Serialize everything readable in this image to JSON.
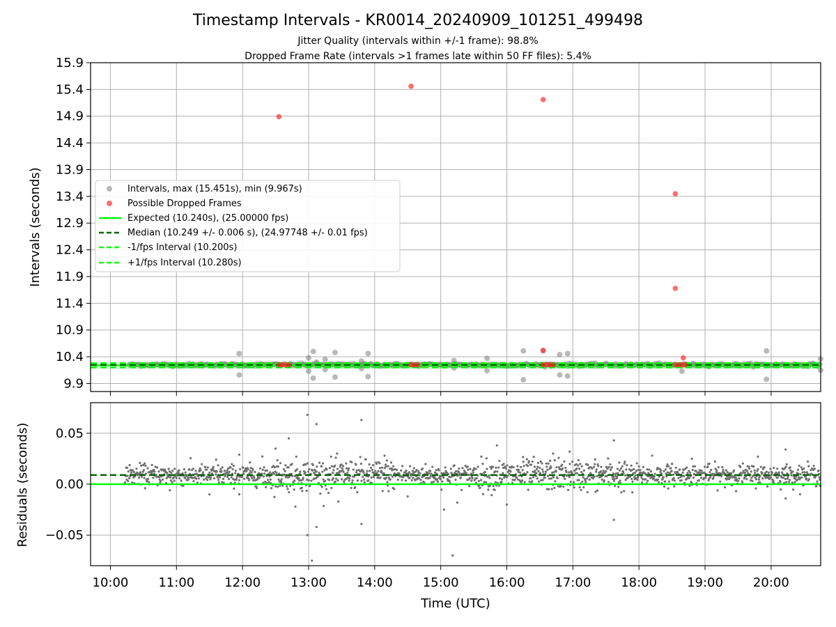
{
  "chart_data": [
    {
      "type": "scatter",
      "title": "Timestamp Intervals - KR0014_20240909_101251_499498",
      "subtitle_lines": [
        "Jitter Quality (intervals within +/-1 frame): 98.8%",
        "Dropped Frame Rate (intervals >1 frames late within 50 FF files): 5.4%"
      ],
      "ylabel": "Intervals (seconds)",
      "xlabel": "",
      "x_units": "hours UTC",
      "xlim": [
        9.7,
        20.75
      ],
      "ylim": [
        9.75,
        15.9
      ],
      "yticks": [
        9.9,
        10.4,
        10.9,
        11.4,
        11.9,
        12.4,
        12.9,
        13.4,
        13.9,
        14.4,
        14.9,
        15.4,
        15.9
      ],
      "ytick_labels": [
        "9.9",
        "10.4",
        "10.9",
        "11.4",
        "11.9",
        "12.4",
        "12.9",
        "13.4",
        "13.9",
        "14.4",
        "14.9",
        "15.4",
        "15.9"
      ],
      "grid": true,
      "legend_position": "center-left",
      "series": [
        {
          "name": "Intervals, max (15.451s), min (9.967s)",
          "marker": "circle",
          "color": "#808080",
          "band_start": 10.28,
          "band_end": 20.75,
          "band_value": 10.249,
          "points": [
            {
              "x": 11.95,
              "y": 10.46
            },
            {
              "x": 11.95,
              "y": 10.06
            },
            {
              "x": 12.05,
              "y": 10.24
            },
            {
              "x": 13.0,
              "y": 10.38
            },
            {
              "x": 13.0,
              "y": 10.13
            },
            {
              "x": 13.07,
              "y": 10.5
            },
            {
              "x": 13.07,
              "y": 10.0
            },
            {
              "x": 13.12,
              "y": 10.3
            },
            {
              "x": 13.25,
              "y": 10.35
            },
            {
              "x": 13.25,
              "y": 10.16
            },
            {
              "x": 13.4,
              "y": 10.48
            },
            {
              "x": 13.4,
              "y": 10.02
            },
            {
              "x": 13.8,
              "y": 10.32
            },
            {
              "x": 13.8,
              "y": 10.18
            },
            {
              "x": 13.9,
              "y": 10.46
            },
            {
              "x": 13.9,
              "y": 10.03
            },
            {
              "x": 15.2,
              "y": 10.33
            },
            {
              "x": 15.2,
              "y": 10.19
            },
            {
              "x": 15.7,
              "y": 10.37
            },
            {
              "x": 15.7,
              "y": 10.14
            },
            {
              "x": 16.25,
              "y": 10.51
            },
            {
              "x": 16.25,
              "y": 9.97
            },
            {
              "x": 16.55,
              "y": 10.51
            },
            {
              "x": 16.8,
              "y": 10.44
            },
            {
              "x": 16.8,
              "y": 10.06
            },
            {
              "x": 16.92,
              "y": 10.46
            },
            {
              "x": 16.92,
              "y": 10.04
            },
            {
              "x": 18.65,
              "y": 10.13
            },
            {
              "x": 19.93,
              "y": 10.51
            },
            {
              "x": 19.93,
              "y": 9.98
            },
            {
              "x": 20.75,
              "y": 10.36
            },
            {
              "x": 20.75,
              "y": 10.15
            }
          ]
        },
        {
          "name": "Possible Dropped Frames",
          "marker": "circle",
          "color": "#ff2020",
          "points": [
            {
              "x": 12.55,
              "y": 14.89
            },
            {
              "x": 14.55,
              "y": 15.46
            },
            {
              "x": 16.55,
              "y": 15.21
            },
            {
              "x": 18.55,
              "y": 13.45
            },
            {
              "x": 18.55,
              "y": 11.68
            },
            {
              "x": 16.55,
              "y": 10.52
            },
            {
              "x": 18.67,
              "y": 10.38
            },
            {
              "x": 12.55,
              "y": 10.25
            },
            {
              "x": 12.6,
              "y": 10.25
            },
            {
              "x": 12.65,
              "y": 10.25
            },
            {
              "x": 12.7,
              "y": 10.25
            },
            {
              "x": 14.55,
              "y": 10.25
            },
            {
              "x": 14.6,
              "y": 10.25
            },
            {
              "x": 14.65,
              "y": 10.25
            },
            {
              "x": 16.55,
              "y": 10.25
            },
            {
              "x": 16.6,
              "y": 10.25
            },
            {
              "x": 16.65,
              "y": 10.25
            },
            {
              "x": 16.7,
              "y": 10.25
            },
            {
              "x": 18.55,
              "y": 10.25
            },
            {
              "x": 18.6,
              "y": 10.25
            },
            {
              "x": 18.65,
              "y": 10.25
            },
            {
              "x": 18.7,
              "y": 10.25
            }
          ]
        },
        {
          "name": "Expected (10.240s), (25.00000 fps)",
          "type": "hline",
          "y": 10.24,
          "color": "#00ff00",
          "style": "solid"
        },
        {
          "name": "Median (10.249 +/- 0.006 s), (24.97748 +/- 0.01 fps)",
          "type": "hline",
          "y": 10.249,
          "color": "#006400",
          "style": "dashed"
        },
        {
          "name": "-1/fps Interval (10.200s)",
          "type": "hline",
          "y": 10.2,
          "color": "#00ff00",
          "style": "dashed"
        },
        {
          "name": "+1/fps Interval (10.280s)",
          "type": "hline",
          "y": 10.28,
          "color": "#00ff00",
          "style": "dashed"
        }
      ]
    },
    {
      "type": "scatter",
      "title": "",
      "ylabel": "Residuals (seconds)",
      "xlabel": "Time (UTC)",
      "x_units": "hours UTC",
      "xlim": [
        9.7,
        20.75
      ],
      "ylim": [
        -0.08,
        0.08
      ],
      "yticks": [
        -0.05,
        0.0,
        0.05
      ],
      "ytick_labels": [
        "−0.05",
        "0.00",
        "0.05"
      ],
      "xticks": [
        10,
        11,
        12,
        13,
        14,
        15,
        16,
        17,
        18,
        19,
        20
      ],
      "xtick_labels": [
        "10:00",
        "11:00",
        "12:00",
        "13:00",
        "14:00",
        "15:00",
        "16:00",
        "17:00",
        "18:00",
        "19:00",
        "20:00"
      ],
      "grid": true,
      "series": [
        {
          "name": "",
          "marker": "dot",
          "color": "#707070",
          "band_start": 10.22,
          "band_end": 20.75,
          "band_center": 0.009,
          "band_spread": 0.008,
          "outliers": [
            {
              "x": 12.5,
              "y": 0.035
            },
            {
              "x": 12.7,
              "y": 0.045
            },
            {
              "x": 12.8,
              "y": -0.022
            },
            {
              "x": 12.98,
              "y": 0.068
            },
            {
              "x": 12.98,
              "y": -0.05
            },
            {
              "x": 13.05,
              "y": -0.075
            },
            {
              "x": 13.12,
              "y": 0.059
            },
            {
              "x": 13.12,
              "y": -0.042
            },
            {
              "x": 13.8,
              "y": 0.063
            },
            {
              "x": 13.8,
              "y": -0.039
            },
            {
              "x": 14.15,
              "y": 0.028
            },
            {
              "x": 15.05,
              "y": -0.025
            },
            {
              "x": 15.18,
              "y": -0.07
            },
            {
              "x": 15.25,
              "y": -0.018
            },
            {
              "x": 15.85,
              "y": 0.038
            },
            {
              "x": 16.0,
              "y": -0.02
            },
            {
              "x": 16.7,
              "y": 0.03
            },
            {
              "x": 16.95,
              "y": 0.032
            },
            {
              "x": 17.62,
              "y": 0.043
            },
            {
              "x": 17.62,
              "y": -0.035
            },
            {
              "x": 18.2,
              "y": 0.028
            },
            {
              "x": 18.8,
              "y": 0.025
            },
            {
              "x": 19.8,
              "y": 0.027
            },
            {
              "x": 20.22,
              "y": 0.034
            },
            {
              "x": 20.22,
              "y": -0.014
            },
            {
              "x": 11.95,
              "y": 0.029
            },
            {
              "x": 11.95,
              "y": -0.01
            },
            {
              "x": 11.6,
              "y": 0.024
            },
            {
              "x": 11.5,
              "y": -0.01
            },
            {
              "x": 10.9,
              "y": -0.006
            },
            {
              "x": 13.45,
              "y": -0.017
            },
            {
              "x": 14.5,
              "y": -0.012
            },
            {
              "x": 16.25,
              "y": 0.022
            },
            {
              "x": 17.9,
              "y": -0.008
            },
            {
              "x": 18.5,
              "y": 0.02
            }
          ]
        },
        {
          "name": "",
          "type": "hline",
          "y": 0.0,
          "color": "#00ff00",
          "style": "solid"
        },
        {
          "name": "",
          "type": "hline",
          "y": 0.009,
          "color": "#006400",
          "style": "dashed"
        }
      ]
    }
  ]
}
